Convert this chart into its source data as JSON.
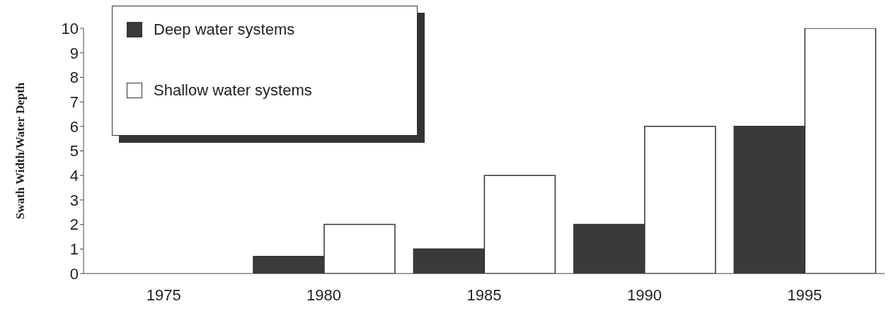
{
  "chart_data": {
    "type": "bar",
    "ylabel": "Swath Width/Water Depth",
    "categories": [
      "1975",
      "1980",
      "1985",
      "1990",
      "1995"
    ],
    "series": [
      {
        "name": "Deep water systems",
        "color": "#3a3a3a",
        "values": [
          null,
          0.7,
          1,
          2,
          6
        ]
      },
      {
        "name": "Shallow water systems",
        "color": "#ffffff",
        "values": [
          null,
          2,
          4,
          6,
          10
        ]
      }
    ],
    "ylim": [
      0,
      10
    ],
    "yticks": [
      0,
      1,
      2,
      3,
      4,
      5,
      6,
      7,
      8,
      9,
      10
    ],
    "grid": false,
    "legend": "top left"
  }
}
